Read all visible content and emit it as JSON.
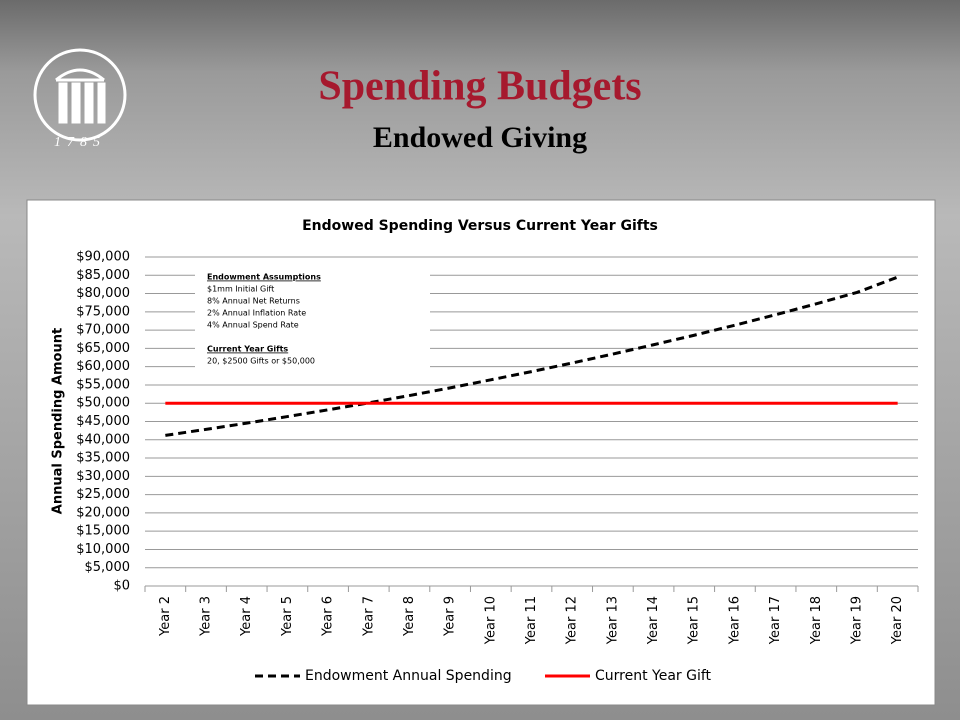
{
  "header": {
    "title": "Spending Budgets",
    "subtitle": "Endowed Giving",
    "logo_year": "1785"
  },
  "chart_data": {
    "type": "line",
    "title": "Endowed Spending Versus  Current Year Gifts",
    "y_label": "Annual Spending Amount",
    "categories": [
      "Year 2",
      "Year 3",
      "Year 4",
      "Year 5",
      "Year 6",
      "Year 7",
      "Year 8",
      "Year 9",
      "Year 10",
      "Year 11",
      "Year 12",
      "Year 13",
      "Year 14",
      "Year 15",
      "Year 16",
      "Year 17",
      "Year 18",
      "Year 19",
      "Year 20"
    ],
    "series": [
      {
        "name": "Endowment Annual Spending",
        "color": "#000000",
        "dash": true,
        "values": [
          41200,
          42850,
          44550,
          46350,
          48200,
          50100,
          52100,
          54200,
          56400,
          58650,
          61000,
          63450,
          66000,
          68600,
          71350,
          74200,
          77200,
          80300,
          84500
        ]
      },
      {
        "name": "Current Year Gift",
        "color": "#ff0000",
        "dash": false,
        "values": [
          50000,
          50000,
          50000,
          50000,
          50000,
          50000,
          50000,
          50000,
          50000,
          50000,
          50000,
          50000,
          50000,
          50000,
          50000,
          50000,
          50000,
          50000,
          50000
        ]
      }
    ],
    "ylim": [
      0,
      90000
    ],
    "yticks": [
      {
        "value": 0,
        "label": "$0"
      },
      {
        "value": 5000,
        "label": "$5,000"
      },
      {
        "value": 10000,
        "label": "$10,000"
      },
      {
        "value": 15000,
        "label": "$15,000"
      },
      {
        "value": 20000,
        "label": "$20,000"
      },
      {
        "value": 25000,
        "label": "$25,000"
      },
      {
        "value": 30000,
        "label": "$30,000"
      },
      {
        "value": 35000,
        "label": "$35,000"
      },
      {
        "value": 40000,
        "label": "$40,000"
      },
      {
        "value": 45000,
        "label": "$45,000"
      },
      {
        "value": 50000,
        "label": "$50,000"
      },
      {
        "value": 55000,
        "label": "$55,000"
      },
      {
        "value": 60000,
        "label": "$60,000"
      },
      {
        "value": 65000,
        "label": "$65,000"
      },
      {
        "value": 70000,
        "label": "$70,000"
      },
      {
        "value": 75000,
        "label": "$75,000"
      },
      {
        "value": 80000,
        "label": "$80,000"
      },
      {
        "value": 85000,
        "label": "$85,000"
      },
      {
        "value": 90000,
        "label": "$90,000"
      }
    ],
    "grid": true,
    "legend": "bottom",
    "annotation": {
      "heading1": "Endowment Assumptions",
      "lines1": [
        "$1mm Initial Gift",
        "8% Annual Net Returns",
        "2% Annual Inflation Rate",
        "4% Annual Spend Rate"
      ],
      "heading2": "Current Year Gifts",
      "lines2": [
        "20, $2500 Gifts  or $50,000"
      ]
    }
  }
}
